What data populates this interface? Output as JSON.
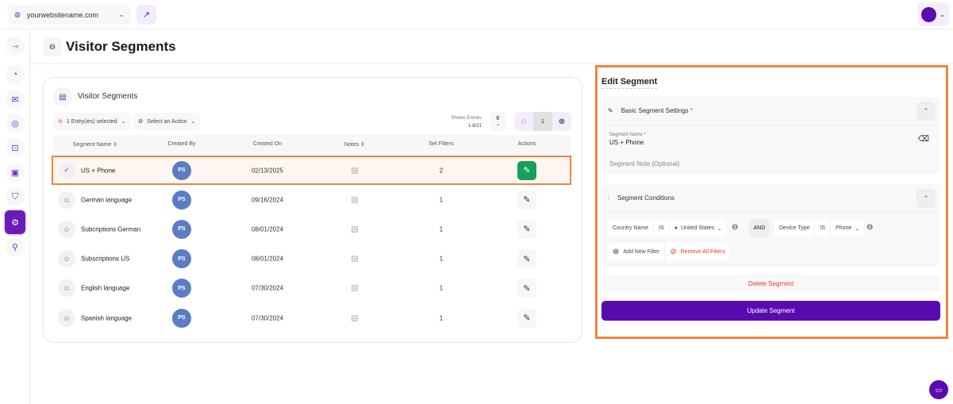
{
  "topbar": {
    "site": "yourwebsitename.com"
  },
  "page": {
    "title": "Visitor Segments"
  },
  "card": {
    "title": "Visitor Segments",
    "selection": "1 Entry(ies) selected",
    "action": "Select an Action",
    "shown_label": "Shown Entries",
    "shown_range": "1-6/21",
    "per_page": "6",
    "page": "1",
    "columns": [
      "Segment Name",
      "Created By",
      "Created On",
      "Notes",
      "Set Filters",
      "Actions"
    ],
    "rows": [
      {
        "name": "US + Phone",
        "by": "PS",
        "on": "02/13/2025",
        "filters": "2",
        "selected": true
      },
      {
        "name": "German language",
        "by": "PS",
        "on": "09/16/2024",
        "filters": "1"
      },
      {
        "name": "Subcriptions German",
        "by": "PS",
        "on": "08/01/2024",
        "filters": "1"
      },
      {
        "name": "Subscriptions US",
        "by": "PS",
        "on": "08/01/2024",
        "filters": "1"
      },
      {
        "name": "English language",
        "by": "PS",
        "on": "07/30/2024",
        "filters": "1"
      },
      {
        "name": "Spanish language",
        "by": "PS",
        "on": "07/30/2024",
        "filters": "1"
      }
    ]
  },
  "edit": {
    "title": "Edit Segment",
    "basic_title": "Basic Segment Settings",
    "name_label": "Segment Name",
    "name_value": "US + Phone",
    "note_placeholder": "Segment Note (Optional)",
    "conditions_title": "Segment Conditions",
    "cond1": {
      "field": "Country Name",
      "op": "IS",
      "value": "United States"
    },
    "joiner": "AND",
    "cond2": {
      "field": "Device Type",
      "op": "IS",
      "value": "Phone"
    },
    "add_filter": "Add New Filter",
    "remove_filters": "Remove All Filters",
    "delete": "Delete Segment",
    "update": "Update Segment"
  },
  "colors": {
    "accent": "#5a0bb0",
    "highlight": "#f0843c",
    "success": "#16a05a",
    "danger": "#e53935"
  }
}
